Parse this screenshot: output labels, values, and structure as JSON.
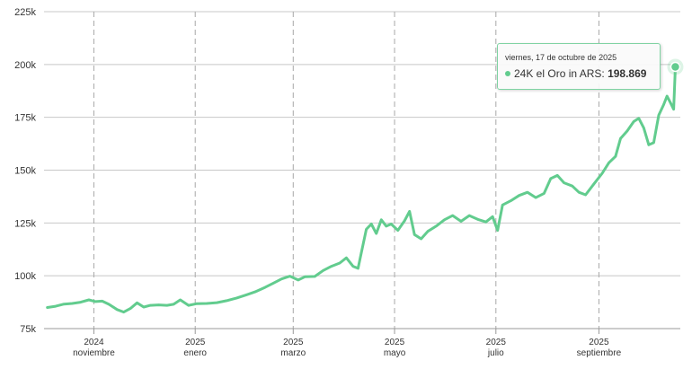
{
  "chart_data": {
    "type": "line",
    "series": [
      {
        "name": "24K el Oro in ARS",
        "color": "#62cc8e",
        "points": [
          [
            "2024-10-04",
            85000
          ],
          [
            "2024-10-09",
            85600
          ],
          [
            "2024-10-14",
            86600
          ],
          [
            "2024-10-19",
            86900
          ],
          [
            "2024-10-24",
            87500
          ],
          [
            "2024-10-29",
            88600
          ],
          [
            "2024-11-02",
            87800
          ],
          [
            "2024-11-06",
            88000
          ],
          [
            "2024-11-10",
            86500
          ],
          [
            "2024-11-15",
            84000
          ],
          [
            "2024-11-19",
            82800
          ],
          [
            "2024-11-23",
            84500
          ],
          [
            "2024-11-27",
            87200
          ],
          [
            "2024-12-01",
            85200
          ],
          [
            "2024-12-05",
            86000
          ],
          [
            "2024-12-10",
            86200
          ],
          [
            "2024-12-15",
            86000
          ],
          [
            "2024-12-19",
            86500
          ],
          [
            "2024-12-23",
            88600
          ],
          [
            "2024-12-28",
            86000
          ],
          [
            "2025-01-02",
            86800
          ],
          [
            "2025-01-08",
            86900
          ],
          [
            "2025-01-14",
            87300
          ],
          [
            "2025-01-20",
            88200
          ],
          [
            "2025-01-26",
            89500
          ],
          [
            "2025-02-01",
            91000
          ],
          [
            "2025-02-06",
            92400
          ],
          [
            "2025-02-12",
            94500
          ],
          [
            "2025-02-17",
            96500
          ],
          [
            "2025-02-22",
            98500
          ],
          [
            "2025-02-27",
            99800
          ],
          [
            "2025-03-04",
            98000
          ],
          [
            "2025-03-08",
            99500
          ],
          [
            "2025-03-14",
            99700
          ],
          [
            "2025-03-19",
            102500
          ],
          [
            "2025-03-24",
            104500
          ],
          [
            "2025-03-29",
            106000
          ],
          [
            "2025-04-02",
            108500
          ],
          [
            "2025-04-06",
            104500
          ],
          [
            "2025-04-09",
            103500
          ],
          [
            "2025-04-11",
            111000
          ],
          [
            "2025-04-14",
            122000
          ],
          [
            "2025-04-17",
            124500
          ],
          [
            "2025-04-20",
            120000
          ],
          [
            "2025-04-23",
            126500
          ],
          [
            "2025-04-26",
            123500
          ],
          [
            "2025-04-29",
            124500
          ],
          [
            "2025-05-03",
            121500
          ],
          [
            "2025-05-07",
            126000
          ],
          [
            "2025-05-10",
            130500
          ],
          [
            "2025-05-13",
            119500
          ],
          [
            "2025-05-17",
            117500
          ],
          [
            "2025-05-21",
            121000
          ],
          [
            "2025-05-26",
            123500
          ],
          [
            "2025-05-31",
            126500
          ],
          [
            "2025-06-05",
            128500
          ],
          [
            "2025-06-10",
            125800
          ],
          [
            "2025-06-15",
            128500
          ],
          [
            "2025-06-20",
            126700
          ],
          [
            "2025-06-25",
            125500
          ],
          [
            "2025-06-29",
            128000
          ],
          [
            "2025-07-02",
            121500
          ],
          [
            "2025-07-05",
            133500
          ],
          [
            "2025-07-10",
            135500
          ],
          [
            "2025-07-15",
            138000
          ],
          [
            "2025-07-20",
            139500
          ],
          [
            "2025-07-25",
            137000
          ],
          [
            "2025-07-30",
            139000
          ],
          [
            "2025-08-03",
            146000
          ],
          [
            "2025-08-07",
            147500
          ],
          [
            "2025-08-11",
            144000
          ],
          [
            "2025-08-16",
            142500
          ],
          [
            "2025-08-20",
            139500
          ],
          [
            "2025-08-24",
            138300
          ],
          [
            "2025-08-29",
            143500
          ],
          [
            "2025-09-03",
            148500
          ],
          [
            "2025-09-07",
            153500
          ],
          [
            "2025-09-11",
            156500
          ],
          [
            "2025-09-14",
            165000
          ],
          [
            "2025-09-18",
            168500
          ],
          [
            "2025-09-22",
            173000
          ],
          [
            "2025-09-25",
            174500
          ],
          [
            "2025-09-28",
            170000
          ],
          [
            "2025-10-01",
            162000
          ],
          [
            "2025-10-04",
            163000
          ],
          [
            "2025-10-07",
            176000
          ],
          [
            "2025-10-10",
            181000
          ],
          [
            "2025-10-12",
            185000
          ],
          [
            "2025-10-14",
            182000
          ],
          [
            "2025-10-16",
            178800
          ],
          [
            "2025-10-17",
            198869
          ]
        ]
      }
    ],
    "xlim": [
      "2024-10-02",
      "2025-10-20"
    ],
    "ylim": [
      75000,
      225000
    ],
    "y_ticks": [
      {
        "value": 75000,
        "label": "75k"
      },
      {
        "value": 100000,
        "label": "100k"
      },
      {
        "value": 125000,
        "label": "125k"
      },
      {
        "value": 150000,
        "label": "150k"
      },
      {
        "value": 175000,
        "label": "175k"
      },
      {
        "value": 200000,
        "label": "200k"
      },
      {
        "value": 225000,
        "label": "225k"
      }
    ],
    "x_ticks": [
      {
        "date": "2024-11-01",
        "year": "2024",
        "month": "noviembre"
      },
      {
        "date": "2025-01-01",
        "year": "2025",
        "month": "enero"
      },
      {
        "date": "2025-03-01",
        "year": "2025",
        "month": "marzo"
      },
      {
        "date": "2025-05-01",
        "year": "2025",
        "month": "mayo"
      },
      {
        "date": "2025-07-01",
        "year": "2025",
        "month": "julio"
      },
      {
        "date": "2025-09-01",
        "year": "2025",
        "month": "septiembre"
      }
    ],
    "grid": true,
    "tooltip": {
      "date": "viernes, 17 de octubre de 2025",
      "series": "24K el Oro in ARS:",
      "value": "198.869",
      "at": "2025-10-17"
    }
  }
}
